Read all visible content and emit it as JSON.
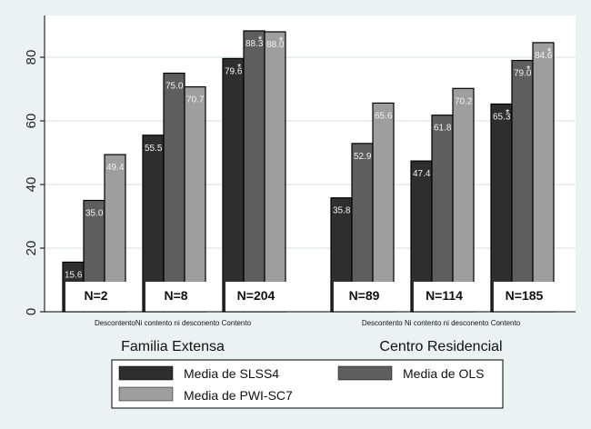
{
  "chart_data": {
    "type": "bar",
    "title": "",
    "xlabel": "",
    "ylabel": "",
    "ylim": [
      0,
      92
    ],
    "yticks": [
      0,
      20,
      40,
      60,
      80
    ],
    "grid": true,
    "legend_position": "bottom",
    "groups": [
      {
        "name": "Familia Extensa",
        "categories": [
          "Descontento",
          "Ni contento ni desconento",
          "Contento"
        ],
        "n_labels": [
          "N=2",
          "N=8",
          "N=204"
        ]
      },
      {
        "name": "Centro Residencial",
        "categories": [
          "Descontento",
          "Ni contento ni desconento",
          "Contento"
        ],
        "n_labels": [
          "N=89",
          "N=114",
          "N=185"
        ]
      }
    ],
    "series": [
      {
        "name": "Media de SLSS4",
        "color": "#2e2e2e",
        "values": [
          [
            15.6,
            55.5,
            79.6
          ],
          [
            35.8,
            47.4,
            65.3
          ]
        ],
        "starred": [
          [
            false,
            false,
            true
          ],
          [
            false,
            false,
            true
          ]
        ]
      },
      {
        "name": "Media de OLS",
        "color": "#5e5e5e",
        "values": [
          [
            35.0,
            75.0,
            88.3
          ],
          [
            52.9,
            61.8,
            79.0
          ]
        ],
        "starred": [
          [
            false,
            false,
            true
          ],
          [
            false,
            false,
            true
          ]
        ]
      },
      {
        "name": "Media de PWI-SC7",
        "color": "#9e9e9e",
        "values": [
          [
            49.4,
            70.7,
            88.0
          ],
          [
            65.6,
            70.2,
            84.6
          ]
        ],
        "starred": [
          [
            false,
            false,
            true
          ],
          [
            false,
            false,
            true
          ]
        ]
      }
    ],
    "star_symbol": "*"
  }
}
